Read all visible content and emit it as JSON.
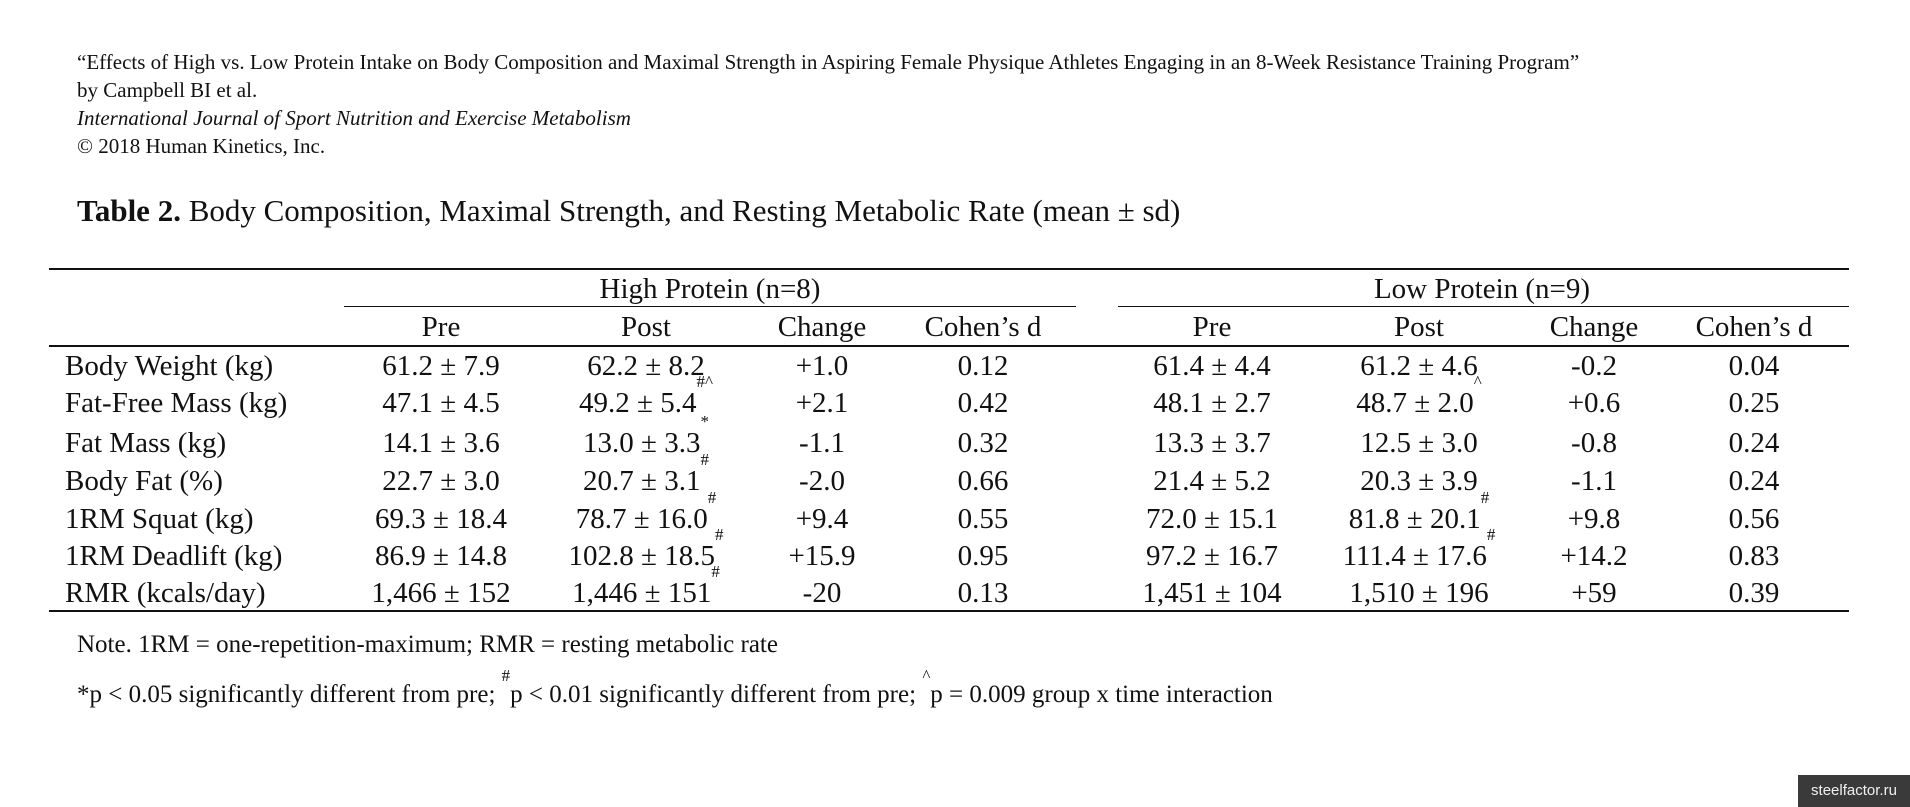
{
  "citation": {
    "title_line": "“Effects of High vs. Low Protein Intake on Body Composition and Maximal Strength in Aspiring Female Physique Athletes Engaging in an 8-Week Resistance Training Program”",
    "authors": "by Campbell BI et al.",
    "journal": "International Journal of Sport Nutrition and Exercise Metabolism",
    "copyright": "© 2018 Human Kinetics, Inc."
  },
  "table": {
    "label": "Table 2.",
    "caption": " Body Composition, Maximal Strength, and Resting Metabolic Rate (mean ± sd)",
    "groups": [
      {
        "label": "High Protein (n=8)"
      },
      {
        "label": "Low Protein (n=9)"
      }
    ],
    "columns": [
      "Pre",
      "Post",
      "Change",
      "Cohen’s d",
      "Pre",
      "Post",
      "Change",
      "Cohen’s d"
    ],
    "rows": [
      {
        "label": "Body Weight (kg)",
        "cells": [
          {
            "v": "61.2 ± 7.9",
            "s": ""
          },
          {
            "v": "62.2 ± 8.2",
            "s": ""
          },
          {
            "v": "+1.0",
            "s": ""
          },
          {
            "v": "0.12",
            "s": ""
          },
          {
            "v": "61.4 ± 4.4",
            "s": ""
          },
          {
            "v": "61.2 ± 4.6",
            "s": ""
          },
          {
            "v": "-0.2",
            "s": ""
          },
          {
            "v": "0.04",
            "s": ""
          }
        ]
      },
      {
        "label": "Fat-Free Mass (kg)",
        "cells": [
          {
            "v": "47.1 ± 4.5",
            "s": ""
          },
          {
            "v": "49.2 ± 5.4",
            "s": "#^"
          },
          {
            "v": "+2.1",
            "s": ""
          },
          {
            "v": "0.42",
            "s": ""
          },
          {
            "v": "48.1 ± 2.7",
            "s": ""
          },
          {
            "v": "48.7 ± 2.0",
            "s": "^"
          },
          {
            "v": "+0.6",
            "s": ""
          },
          {
            "v": "0.25",
            "s": ""
          }
        ]
      },
      {
        "label": "Fat Mass (kg)",
        "cells": [
          {
            "v": "14.1 ± 3.6",
            "s": ""
          },
          {
            "v": "13.0 ± 3.3",
            "s": "*"
          },
          {
            "v": "-1.1",
            "s": ""
          },
          {
            "v": "0.32",
            "s": ""
          },
          {
            "v": "13.3 ± 3.7",
            "s": ""
          },
          {
            "v": "12.5 ± 3.0",
            "s": ""
          },
          {
            "v": "-0.8",
            "s": ""
          },
          {
            "v": "0.24",
            "s": ""
          }
        ]
      },
      {
        "label": "Body Fat (%)",
        "cells": [
          {
            "v": "22.7 ± 3.0",
            "s": ""
          },
          {
            "v": "20.7 ± 3.1",
            "s": "#"
          },
          {
            "v": "-2.0",
            "s": ""
          },
          {
            "v": "0.66",
            "s": ""
          },
          {
            "v": "21.4 ± 5.2",
            "s": ""
          },
          {
            "v": "20.3 ± 3.9",
            "s": ""
          },
          {
            "v": "-1.1",
            "s": ""
          },
          {
            "v": "0.24",
            "s": ""
          }
        ]
      },
      {
        "label": "1RM Squat (kg)",
        "cells": [
          {
            "v": "69.3 ± 18.4",
            "s": ""
          },
          {
            "v": "78.7 ± 16.0",
            "s": "#"
          },
          {
            "v": "+9.4",
            "s": ""
          },
          {
            "v": "0.55",
            "s": ""
          },
          {
            "v": "72.0 ± 15.1",
            "s": ""
          },
          {
            "v": "81.8 ± 20.1",
            "s": "#"
          },
          {
            "v": "+9.8",
            "s": ""
          },
          {
            "v": "0.56",
            "s": ""
          }
        ]
      },
      {
        "label": "1RM Deadlift (kg)",
        "cells": [
          {
            "v": "86.9 ± 14.8",
            "s": ""
          },
          {
            "v": "102.8 ± 18.5",
            "s": "#"
          },
          {
            "v": "+15.9",
            "s": ""
          },
          {
            "v": "0.95",
            "s": ""
          },
          {
            "v": "97.2 ± 16.7",
            "s": ""
          },
          {
            "v": "111.4 ± 17.6",
            "s": "#"
          },
          {
            "v": "+14.2",
            "s": ""
          },
          {
            "v": "0.83",
            "s": ""
          }
        ]
      },
      {
        "label": "RMR (kcals/day)",
        "cells": [
          {
            "v": "1,466 ± 152",
            "s": ""
          },
          {
            "v": "1,446 ± 151",
            "s": "#"
          },
          {
            "v": "-20",
            "s": ""
          },
          {
            "v": "0.13",
            "s": ""
          },
          {
            "v": "1,451 ± 104",
            "s": ""
          },
          {
            "v": "1,510 ± 196",
            "s": ""
          },
          {
            "v": "+59",
            "s": ""
          },
          {
            "v": "0.39",
            "s": ""
          }
        ]
      }
    ]
  },
  "notes": {
    "abbrev": "Note. 1RM = one-repetition-maximum; RMR = resting metabolic rate",
    "sig": [
      {
        "mark": "",
        "text": "*p < 0.05 significantly different from pre; "
      },
      {
        "mark": "#",
        "text": "p < 0.01 significantly different from pre; "
      },
      {
        "mark": "^",
        "text": "p = 0.009 group x time interaction"
      }
    ]
  },
  "watermark": "steelfactor.ru"
}
